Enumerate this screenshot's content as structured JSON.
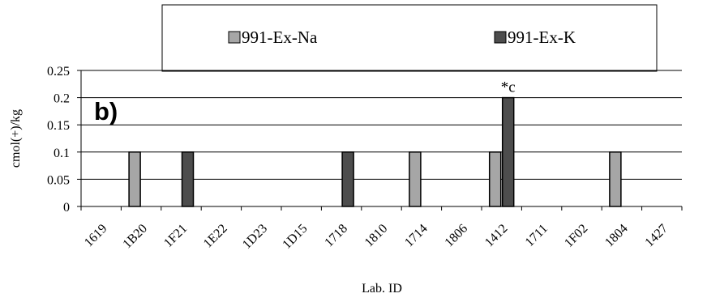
{
  "chart_data": {
    "type": "bar",
    "panel_label": "b)",
    "xlabel": "Lab. ID",
    "ylabel": "cmol(+)/kg",
    "ylim": [
      0,
      0.25
    ],
    "yticks": [
      0,
      0.05,
      0.1,
      0.15,
      0.2,
      0.25
    ],
    "ytick_labels": [
      "0",
      "0.05",
      "0.1",
      "0.15",
      "0.2",
      "0.25"
    ],
    "grid": "horizontal",
    "legend_position": "top",
    "categories": [
      "1619",
      "1B20",
      "1F21",
      "1E22",
      "1D23",
      "1D15",
      "1718",
      "1810",
      "1714",
      "1806",
      "1412",
      "1711",
      "1F02",
      "1804",
      "1427"
    ],
    "series": [
      {
        "name": "991-Ex-Na",
        "color": "#a6a6a6",
        "values": [
          null,
          0.1,
          null,
          null,
          null,
          null,
          null,
          null,
          0.1,
          null,
          0.1,
          null,
          null,
          0.1,
          null
        ]
      },
      {
        "name": "991-Ex-K",
        "color": "#4d4d4d",
        "values": [
          null,
          null,
          0.1,
          null,
          null,
          null,
          0.1,
          null,
          null,
          null,
          0.2,
          null,
          null,
          null,
          null
        ]
      }
    ],
    "annotations": [
      {
        "text": "*c",
        "category": "1412",
        "series": "991-Ex-K"
      }
    ]
  }
}
